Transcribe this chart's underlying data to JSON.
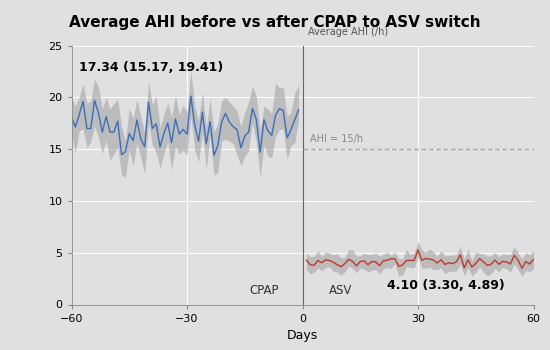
{
  "title": "Average AHI before vs after CPAP to ASV switch",
  "xlabel": "Days",
  "ylabel_label": "Average AHI (/h)",
  "ylim": [
    0,
    25
  ],
  "yticks": [
    0,
    5,
    10,
    15,
    20,
    25
  ],
  "xlim": [
    -60,
    60
  ],
  "xticks": [
    -60,
    -30,
    0,
    30,
    60
  ],
  "cpap_mean": 17.34,
  "cpap_ci_low": 15.17,
  "cpap_ci_high": 19.41,
  "asv_mean": 4.1,
  "asv_ci_low": 3.3,
  "asv_ci_high": 4.89,
  "ahi_threshold": 15,
  "ahi_threshold_label": "AHI = 15/h",
  "blue_color": "#3a6fbe",
  "red_color": "#c0392b",
  "gray_band_color": "#aaaaaa",
  "dashed_line_color": "#aaaaaa",
  "title_bg_color": "#cccccc",
  "plot_bg_color": "#e0e0e0",
  "grid_color": "#ffffff",
  "cpap_label": "CPAP",
  "asv_label": "ASV",
  "annotation_cpap": "17.34 (15.17, 19.41)",
  "annotation_asv": "4.10 (3.30, 4.89)",
  "seed": 42
}
